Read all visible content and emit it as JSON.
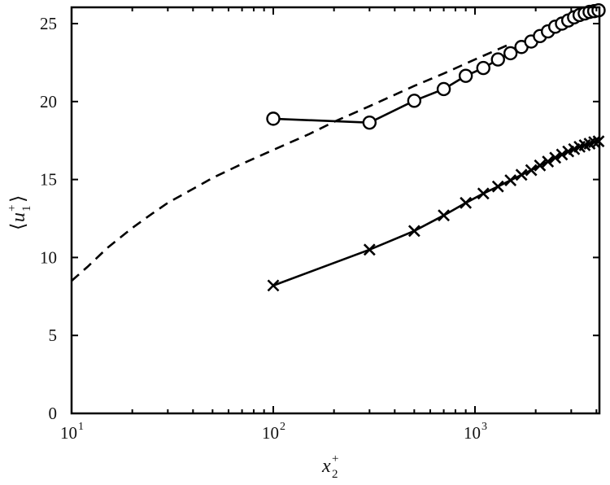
{
  "chart_data": {
    "type": "line",
    "title": "",
    "xlabel": "x2+",
    "ylabel": "<u1+>",
    "xscale": "log",
    "xlim": [
      10,
      4100
    ],
    "ylim": [
      0,
      26
    ],
    "x_ticks": [
      "10^1",
      "10^2",
      "10^3"
    ],
    "y_ticks": [
      "0",
      "5",
      "10",
      "15",
      "20",
      "25"
    ],
    "grid": false,
    "legend": null,
    "series": [
      {
        "name": "circles",
        "marker": "circle-open",
        "line": "solid",
        "x": [
          100,
          300,
          500,
          700,
          900,
          1100,
          1300,
          1500,
          1700,
          1900,
          2100,
          2300,
          2500,
          2700,
          2900,
          3100,
          3300,
          3500,
          3700,
          3900,
          4100
        ],
        "values": [
          18.9,
          18.65,
          20.05,
          20.8,
          21.65,
          22.15,
          22.7,
          23.1,
          23.5,
          23.85,
          24.2,
          24.5,
          24.8,
          25.0,
          25.2,
          25.4,
          25.55,
          25.65,
          25.75,
          25.8,
          25.85
        ]
      },
      {
        "name": "crosses",
        "marker": "x",
        "line": "solid",
        "x": [
          100,
          300,
          500,
          700,
          900,
          1100,
          1300,
          1500,
          1700,
          1900,
          2100,
          2300,
          2500,
          2700,
          2900,
          3100,
          3300,
          3500,
          3700,
          3900,
          4100
        ],
        "values": [
          8.2,
          10.5,
          11.7,
          12.7,
          13.5,
          14.1,
          14.55,
          14.95,
          15.3,
          15.6,
          15.9,
          16.15,
          16.4,
          16.6,
          16.8,
          16.95,
          17.1,
          17.2,
          17.3,
          17.4,
          17.45
        ]
      },
      {
        "name": "reference",
        "marker": "none",
        "line": "dashed",
        "x": [
          10,
          12,
          15,
          20,
          25,
          30,
          40,
          50,
          70,
          100,
          150,
          200,
          300,
          500,
          700,
          1000,
          1500
        ],
        "values": [
          8.5,
          9.4,
          10.6,
          11.9,
          12.8,
          13.5,
          14.4,
          15.1,
          16.0,
          16.9,
          17.9,
          18.7,
          19.7,
          21.0,
          21.8,
          22.7,
          23.7
        ]
      }
    ]
  }
}
